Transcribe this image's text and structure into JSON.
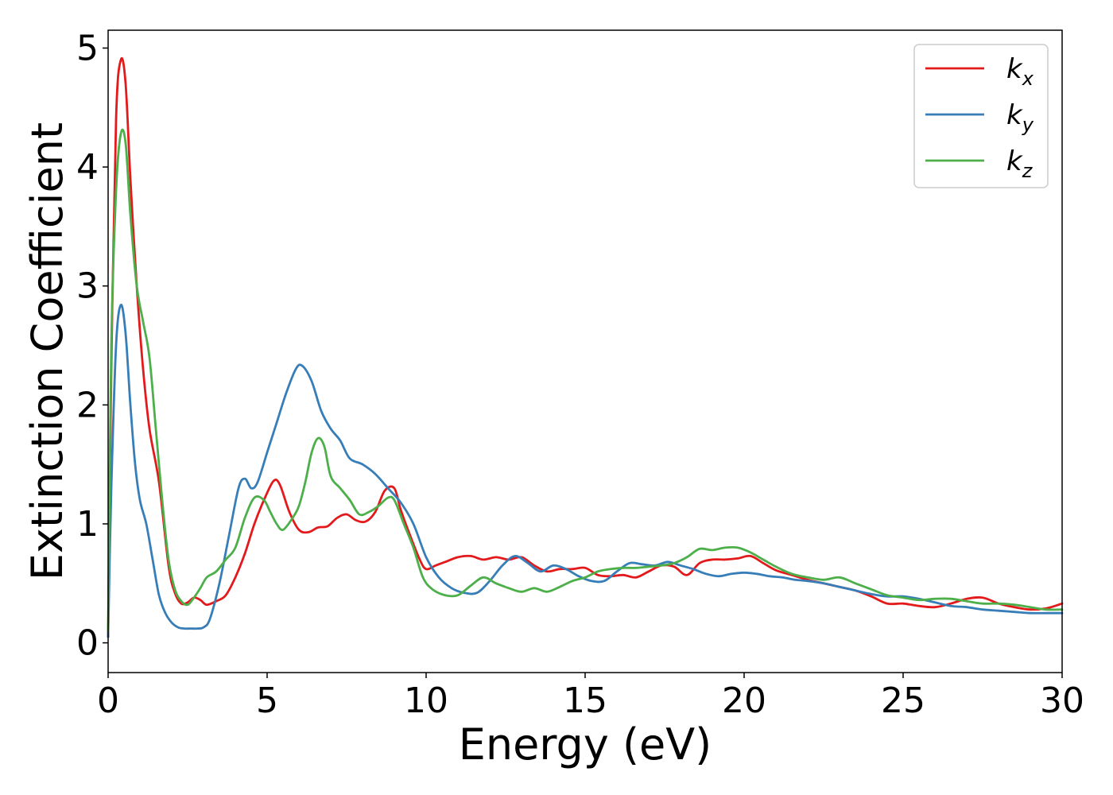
{
  "chart_data": {
    "type": "line",
    "title": "",
    "xlabel": "Energy (eV)",
    "ylabel": "Extinction Coefficient",
    "xlim": [
      0,
      30
    ],
    "ylim": [
      -0.25,
      5.15
    ],
    "xticks": [
      0,
      5,
      10,
      15,
      20,
      25,
      30
    ],
    "yticks": [
      0,
      1,
      2,
      3,
      4,
      5
    ],
    "grid": false,
    "legend_position": "top-right",
    "series": [
      {
        "name": "k_x",
        "label_base": "k",
        "label_sub": "x",
        "color": "#e31a1c",
        "x": [
          0,
          0.1,
          0.25,
          0.4,
          0.55,
          0.7,
          0.9,
          1.1,
          1.3,
          1.6,
          1.9,
          2.1,
          2.3,
          2.5,
          2.7,
          2.9,
          3.1,
          3.4,
          3.7,
          4.0,
          4.3,
          4.6,
          4.9,
          5.2,
          5.4,
          5.7,
          6.0,
          6.3,
          6.6,
          6.9,
          7.2,
          7.5,
          7.8,
          8.1,
          8.4,
          8.7,
          9.0,
          9.2,
          9.5,
          9.8,
          10.0,
          10.3,
          10.6,
          11.0,
          11.4,
          11.8,
          12.2,
          12.6,
          13.0,
          13.4,
          13.8,
          14.2,
          14.6,
          15.0,
          15.4,
          15.8,
          16.2,
          16.6,
          17.0,
          17.4,
          17.8,
          18.2,
          18.6,
          19.0,
          19.4,
          19.8,
          20.2,
          20.6,
          21.0,
          21.5,
          22.0,
          22.5,
          23.0,
          23.5,
          24.0,
          24.5,
          25.0,
          25.5,
          26.0,
          26.5,
          27.0,
          27.5,
          28.0,
          28.5,
          29.0,
          29.5,
          30.0
        ],
        "y": [
          0.05,
          2.3,
          4.4,
          4.9,
          4.7,
          3.9,
          3.0,
          2.3,
          1.8,
          1.35,
          0.65,
          0.42,
          0.33,
          0.34,
          0.38,
          0.36,
          0.32,
          0.35,
          0.4,
          0.55,
          0.75,
          1.0,
          1.2,
          1.36,
          1.33,
          1.1,
          0.95,
          0.93,
          0.97,
          0.98,
          1.05,
          1.08,
          1.03,
          1.02,
          1.1,
          1.28,
          1.3,
          1.12,
          0.9,
          0.7,
          0.62,
          0.65,
          0.68,
          0.72,
          0.73,
          0.7,
          0.72,
          0.7,
          0.72,
          0.65,
          0.6,
          0.62,
          0.62,
          0.63,
          0.57,
          0.56,
          0.57,
          0.55,
          0.6,
          0.65,
          0.64,
          0.57,
          0.67,
          0.7,
          0.7,
          0.71,
          0.73,
          0.67,
          0.61,
          0.57,
          0.53,
          0.5,
          0.47,
          0.44,
          0.39,
          0.33,
          0.33,
          0.31,
          0.3,
          0.33,
          0.37,
          0.38,
          0.33,
          0.3,
          0.28,
          0.29,
          0.33
        ]
      },
      {
        "name": "k_y",
        "label_base": "k",
        "label_sub": "y",
        "color": "#377eb8",
        "x": [
          0,
          0.1,
          0.25,
          0.4,
          0.55,
          0.7,
          0.85,
          1.0,
          1.2,
          1.4,
          1.6,
          1.8,
          2.0,
          2.2,
          2.4,
          2.6,
          2.8,
          3.0,
          3.2,
          3.5,
          3.8,
          4.1,
          4.3,
          4.5,
          4.7,
          5.0,
          5.3,
          5.6,
          5.9,
          6.1,
          6.4,
          6.7,
          7.0,
          7.3,
          7.6,
          8.0,
          8.4,
          8.8,
          9.2,
          9.6,
          10.0,
          10.4,
          10.8,
          11.2,
          11.6,
          12.0,
          12.4,
          12.8,
          13.2,
          13.6,
          14.0,
          14.4,
          14.8,
          15.2,
          15.6,
          16.0,
          16.4,
          16.8,
          17.2,
          17.6,
          18.0,
          18.4,
          18.8,
          19.2,
          19.6,
          20.0,
          20.4,
          20.8,
          21.2,
          21.6,
          22.0,
          22.5,
          23.0,
          23.5,
          24.0,
          24.5,
          25.0,
          25.5,
          26.0,
          26.5,
          27.0,
          27.5,
          28.0,
          28.5,
          29.0,
          29.5,
          30.0
        ],
        "y": [
          0.05,
          1.3,
          2.5,
          2.84,
          2.6,
          2.0,
          1.5,
          1.2,
          1.0,
          0.7,
          0.4,
          0.25,
          0.17,
          0.13,
          0.12,
          0.12,
          0.12,
          0.13,
          0.2,
          0.5,
          0.9,
          1.3,
          1.38,
          1.3,
          1.35,
          1.6,
          1.85,
          2.1,
          2.3,
          2.33,
          2.2,
          1.95,
          1.8,
          1.7,
          1.55,
          1.5,
          1.42,
          1.3,
          1.18,
          1.0,
          0.72,
          0.55,
          0.46,
          0.42,
          0.42,
          0.52,
          0.65,
          0.73,
          0.67,
          0.6,
          0.65,
          0.62,
          0.56,
          0.52,
          0.52,
          0.6,
          0.67,
          0.66,
          0.65,
          0.68,
          0.65,
          0.62,
          0.58,
          0.56,
          0.58,
          0.59,
          0.58,
          0.56,
          0.55,
          0.53,
          0.52,
          0.5,
          0.47,
          0.44,
          0.41,
          0.39,
          0.39,
          0.37,
          0.34,
          0.31,
          0.3,
          0.28,
          0.27,
          0.26,
          0.25,
          0.25,
          0.25
        ]
      },
      {
        "name": "k_z",
        "label_base": "k",
        "label_sub": "z",
        "color": "#4daf4a",
        "x": [
          0,
          0.1,
          0.25,
          0.4,
          0.55,
          0.7,
          0.9,
          1.1,
          1.3,
          1.5,
          1.7,
          1.9,
          2.1,
          2.3,
          2.5,
          2.7,
          2.9,
          3.1,
          3.4,
          3.7,
          4.0,
          4.3,
          4.6,
          4.9,
          5.1,
          5.3,
          5.5,
          5.8,
          6.0,
          6.2,
          6.4,
          6.6,
          6.8,
          7.0,
          7.3,
          7.6,
          7.9,
          8.2,
          8.5,
          8.8,
          9.0,
          9.3,
          9.6,
          9.9,
          10.2,
          10.6,
          11.0,
          11.4,
          11.8,
          12.2,
          12.6,
          13.0,
          13.4,
          13.8,
          14.2,
          14.6,
          15.0,
          15.4,
          15.8,
          16.2,
          16.6,
          17.0,
          17.4,
          17.8,
          18.2,
          18.6,
          19.0,
          19.4,
          19.8,
          20.2,
          20.6,
          21.0,
          21.5,
          22.0,
          22.5,
          23.0,
          23.5,
          24.0,
          24.5,
          25.0,
          25.5,
          26.0,
          26.5,
          27.0,
          27.5,
          28.0,
          28.5,
          29.0,
          29.5,
          30.0
        ],
        "y": [
          0.1,
          2.5,
          3.8,
          4.28,
          4.2,
          3.6,
          3.0,
          2.7,
          2.4,
          1.8,
          1.2,
          0.7,
          0.45,
          0.35,
          0.32,
          0.38,
          0.46,
          0.55,
          0.6,
          0.7,
          0.8,
          1.05,
          1.22,
          1.2,
          1.1,
          1.0,
          0.95,
          1.05,
          1.15,
          1.35,
          1.6,
          1.72,
          1.65,
          1.4,
          1.3,
          1.2,
          1.08,
          1.1,
          1.15,
          1.22,
          1.2,
          1.0,
          0.8,
          0.55,
          0.45,
          0.4,
          0.4,
          0.48,
          0.55,
          0.5,
          0.46,
          0.43,
          0.46,
          0.43,
          0.47,
          0.52,
          0.55,
          0.6,
          0.62,
          0.63,
          0.63,
          0.64,
          0.65,
          0.67,
          0.72,
          0.79,
          0.78,
          0.8,
          0.8,
          0.76,
          0.7,
          0.64,
          0.58,
          0.55,
          0.53,
          0.55,
          0.5,
          0.45,
          0.4,
          0.38,
          0.36,
          0.37,
          0.37,
          0.35,
          0.33,
          0.33,
          0.32,
          0.3,
          0.28,
          0.28
        ]
      }
    ]
  }
}
